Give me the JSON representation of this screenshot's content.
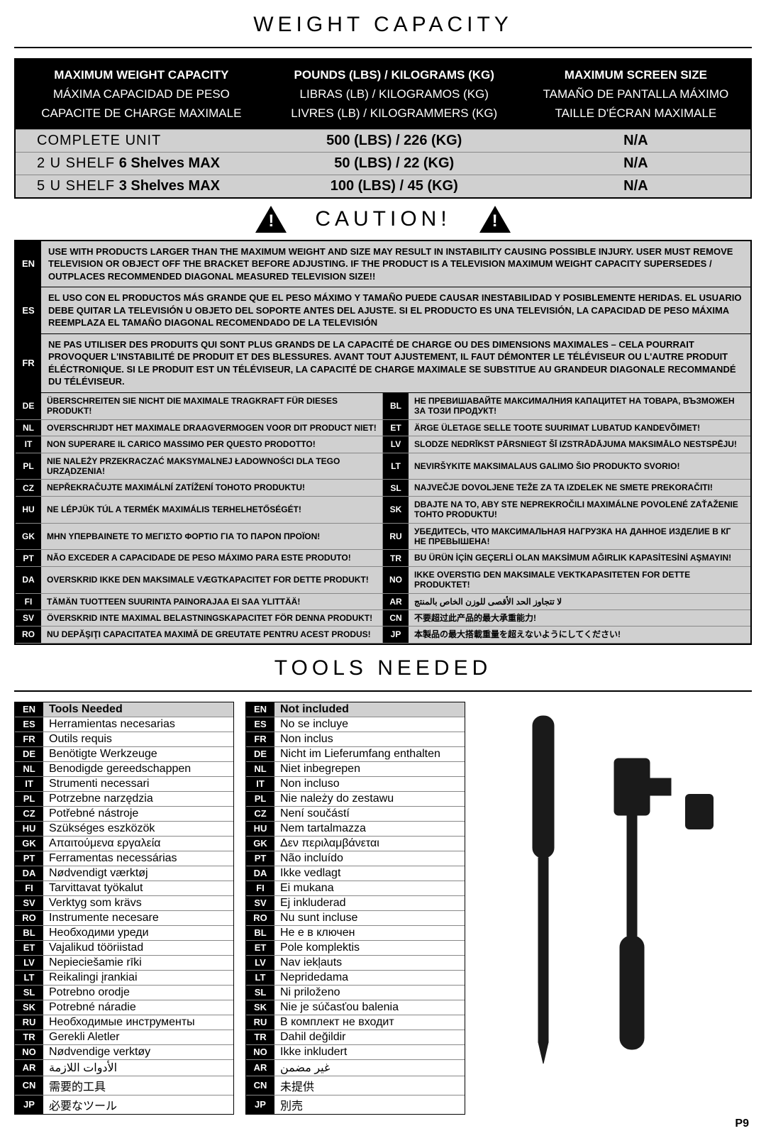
{
  "headings": {
    "weight": "WEIGHT CAPACITY",
    "caution": "CAUTION!",
    "tools": "TOOLS NEEDED"
  },
  "page": "P9",
  "wc_header": {
    "col1": [
      "MAXIMUM WEIGHT CAPACITY",
      "MÁXIMA CAPACIDAD DE PESO",
      "CAPACITE DE CHARGE MAXIMALE"
    ],
    "col2": [
      "POUNDS (LBS) / KILOGRAMS (KG)",
      "LIBRAS (LB) / KILOGRAMOS (KG)",
      "LIVRES (LB) / KILOGRAMMERS (KG)"
    ],
    "col3": [
      "MAXIMUM SCREEN SIZE",
      "TAMAÑO DE PANTALLA MÁXIMO",
      "TAILLE D'ÉCRAN MAXIMALE"
    ]
  },
  "wc_rows": [
    {
      "c1a": "COMPLETE UNIT",
      "c1b": "",
      "c2": "500 (LBS) / 226 (KG)",
      "c3": "N/A"
    },
    {
      "c1a": "2 U SHELF",
      "c1b": " 6 Shelves MAX",
      "c2": "50 (LBS) / 22 (KG)",
      "c3": "N/A"
    },
    {
      "c1a": "5 U SHELF",
      "c1b": " 3 Shelves MAX",
      "c2": "100 (LBS) / 45 (KG)",
      "c3": "N/A"
    }
  ],
  "long_warn": [
    {
      "code": "EN",
      "txt": "USE WITH PRODUCTS LARGER THAN THE MAXIMUM WEIGHT AND SIZE MAY RESULT IN INSTABILITY CAUSING POSSIBLE INJURY.  USER MUST REMOVE TELEVISION OR OBJECT OFF THE BRACKET BEFORE ADJUSTING.  IF THE PRODUCT IS A TELEVISION MAXIMUM WEIGHT CAPACITY SUPERSEDES / OUTPLACES RECOMMENDED DIAGONAL  MEASURED TELEVISION SIZE!!"
    },
    {
      "code": "ES",
      "txt": "EL USO CON EL PRODUCTOS MÁS GRANDE QUE EL PESO MÁXIMO Y TAMAÑO PUEDE CAUSAR INESTABILIDAD Y POSIBLEMENTE HERIDAS. EL USUARIO DEBE QUITAR LA TELEVISIÓN U OBJETO DEL SOPORTE ANTES DEL AJUSTE. SI EL PRODUCTO ES UNA TELEVISIÓN, LA CAPACIDAD DE PESO MÁXIMA REEMPLAZA EL TAMAÑO DIAGONAL RECOMENDADO DE LA TELEVISIÓN"
    },
    {
      "code": "FR",
      "txt": "NE PAS UTILISER DES PRODUITS QUI SONT PLUS GRANDS DE LA CAPACITÉ DE CHARGE OU DES DIMENSIONS MAXIMALES – CELA POURRAIT PROVOQUER L'INSTABILITÉ DE PRODUIT ET DES BLESSURES. AVANT TOUT AJUSTEMENT, IL FAUT DÉMONTER LE TÉLÉVISEUR OU L'AUTRE PRODUIT ÉLÉCTRONIQUE. SI LE PRODUIT EST UN TÉLÉVISEUR, LA CAPACITÉ DE CHARGE MAXIMALE SE SUBSTITUE AU GRANDEUR DIAGONALE RECOMMANDÉ DU TÉLÉVISEUR."
    }
  ],
  "short_warn": [
    {
      "code": "DE",
      "txt": "ÜBERSCHREITEN SIE NICHT DIE MAXIMALE TRAGKRAFT FÜR DIESES PRODUKT!"
    },
    {
      "code": "BL",
      "txt": "НЕ ПРЕВИШАВАЙТЕ МАКСИМАЛНИЯ КАПАЦИТЕТ НА ТОВАРА, ВЪЗМОЖЕН ЗА ТОЗИ ПРОДУКТ!"
    },
    {
      "code": "NL",
      "txt": "OVERSCHRIJDT HET MAXIMALE DRAAGVERMOGEN VOOR DIT PRODUCT NIET!"
    },
    {
      "code": "ET",
      "txt": "ÄRGE ÜLETAGE SELLE TOOTE SUURIMAT LUBATUD KANDEVÕIMET!"
    },
    {
      "code": "IT",
      "txt": "NON SUPERARE IL CARICO MASSIMO PER QUESTO PRODOTTO!"
    },
    {
      "code": "LV",
      "txt": "SLODZE NEDRĪKST PĀRSNIEGT ŠĪ IZSTRĀDĀJUMA MAKSIMĀLO NESTSPĒJU!"
    },
    {
      "code": "PL",
      "txt": "NIE NALEŻY PRZEKRACZAĆ MAKSYMALNEJ ŁADOWNOŚCI DLA TEGO URZĄDZENIA!"
    },
    {
      "code": "LT",
      "txt": "NEVIRŠYKITE MAKSIMALAUS GALIMO ŠIO PRODUKTO SVORIO!"
    },
    {
      "code": "CZ",
      "txt": "NEPŘEKRAČUJTE MAXIMÁLNÍ ZATÍŽENÍ TOHOTO PRODUKTU!"
    },
    {
      "code": "SL",
      "txt": "NAJVEČJE DOVOLJENE TEŽE ZA TA IZDELEK NE SMETE PREKORAČITI!"
    },
    {
      "code": "HU",
      "txt": "NE LÉPJÜK TÚL A TERMÉK MAXIMÁLIS TERHELHETŐSÉGÉT!"
    },
    {
      "code": "SK",
      "txt": "DBAJTE NA TO, ABY STE NEPREKROČILI MAXIMÁLNE POVOLENÉ ZAŤAŽENIE TOHTO PRODUKTU!"
    },
    {
      "code": "GK",
      "txt": "ΜΗΝ ΥΠΕΡΒΑΙΝΕΤΕ ΤΟ ΜΕΓΙΣΤΟ ΦΟΡΤΙΟ ΓΙΑ ΤΟ ΠΑΡΟΝ ΠΡΟΪΟΝ!"
    },
    {
      "code": "RU",
      "txt": "УБЕДИТЕСЬ, ЧТО МАКСИМАЛЬНАЯ НАГРУЗКА НА ДАННОЕ ИЗДЕЛИЕ В КГ НЕ ПРЕВЫШЕНА!"
    },
    {
      "code": "PT",
      "txt": "NÃO EXCEDER A CAPACIDADE DE PESO MÁXIMO PARA ESTE PRODUTO!"
    },
    {
      "code": "TR",
      "txt": "BU ÜRÜN İÇİN GEÇERLİ OLAN MAKSİMUM AĞIRLIK KAPASİTESİNİ AŞMAYIN!"
    },
    {
      "code": "DA",
      "txt": "OVERSKRID IKKE DEN MAKSIMALE VÆGTKAPACITET FOR DETTE PRODUKT!"
    },
    {
      "code": "NO",
      "txt": "IKKE OVERSTIG DEN MAKSIMALE VEKTKAPASITETEN FOR DETTE PRODUKTET!"
    },
    {
      "code": "FI",
      "txt": "TÄMÄN TUOTTEEN SUURINTA PAINORAJAA EI SAA YLITTÄÄ!"
    },
    {
      "code": "AR",
      "txt": "لا تتجاوز الحد الأقصى للوزن الخاص بالمنتج"
    },
    {
      "code": "SV",
      "txt": "ÖVERSKRID INTE MAXIMAL BELASTNINGSKAPACITET FÖR DENNA PRODUKT!"
    },
    {
      "code": "CN",
      "txt": "不要超过此产品的最大承重能力!"
    },
    {
      "code": "RO",
      "txt": "NU DEPĂŞIŢI CAPACITATEA MAXIMĂ DE GREUTATE PENTRU ACEST PRODUS!"
    },
    {
      "code": "JP",
      "txt": "本製品の最大搭載重量を超えないようにしてください!"
    }
  ],
  "tools_needed": [
    {
      "code": "EN",
      "txt": "Tools Needed",
      "hdr": true
    },
    {
      "code": "ES",
      "txt": "Herramientas necesarias"
    },
    {
      "code": "FR",
      "txt": "Outils requis"
    },
    {
      "code": "DE",
      "txt": "Benötigte Werkzeuge"
    },
    {
      "code": "NL",
      "txt": "Benodigde gereedschappen"
    },
    {
      "code": "IT",
      "txt": "Strumenti necessari"
    },
    {
      "code": "PL",
      "txt": "Potrzebne narzędzia"
    },
    {
      "code": "CZ",
      "txt": "Potřebné nástroje"
    },
    {
      "code": "HU",
      "txt": "Szükséges eszközök"
    },
    {
      "code": "GK",
      "txt": "Απαιτούμενα εργαλεία"
    },
    {
      "code": "PT",
      "txt": "Ferramentas necessárias"
    },
    {
      "code": "DA",
      "txt": "Nødvendigt værktøj"
    },
    {
      "code": "FI",
      "txt": "Tarvittavat työkalut"
    },
    {
      "code": "SV",
      "txt": "Verktyg som krävs"
    },
    {
      "code": "RO",
      "txt": "Instrumente necesare"
    },
    {
      "code": "BL",
      "txt": "Необходими уреди"
    },
    {
      "code": "ET",
      "txt": "Vajalikud tööriistad"
    },
    {
      "code": "LV",
      "txt": "Nepieciešamie rīki"
    },
    {
      "code": "LT",
      "txt": "Reikalingi įrankiai"
    },
    {
      "code": "SL",
      "txt": "Potrebno orodje"
    },
    {
      "code": "SK",
      "txt": "Potrebné náradie"
    },
    {
      "code": "RU",
      "txt": "Необходимые инструменты"
    },
    {
      "code": "TR",
      "txt": "Gerekli Aletler"
    },
    {
      "code": "NO",
      "txt": "Nødvendige verktøy"
    },
    {
      "code": "AR",
      "txt": "الأدوات اللازمة"
    },
    {
      "code": "CN",
      "txt": "需要的工具"
    },
    {
      "code": "JP",
      "txt": "必要なツール"
    }
  ],
  "not_included": [
    {
      "code": "EN",
      "txt": "Not included",
      "hdr": true
    },
    {
      "code": "ES",
      "txt": "No se incluye"
    },
    {
      "code": "FR",
      "txt": "Non inclus"
    },
    {
      "code": "DE",
      "txt": "Nicht im Lieferumfang enthalten"
    },
    {
      "code": "NL",
      "txt": "Niet inbegrepen"
    },
    {
      "code": "IT",
      "txt": "Non incluso"
    },
    {
      "code": "PL",
      "txt": "Nie należy do zestawu"
    },
    {
      "code": "CZ",
      "txt": "Není součástí"
    },
    {
      "code": "HU",
      "txt": "Nem tartalmazza"
    },
    {
      "code": "GK",
      "txt": "Δεν περιλαμβάνεται"
    },
    {
      "code": "PT",
      "txt": "Não incluído"
    },
    {
      "code": "DA",
      "txt": "Ikke vedlagt"
    },
    {
      "code": "FI",
      "txt": "Ei mukana"
    },
    {
      "code": "SV",
      "txt": "Ej inkluderad"
    },
    {
      "code": "RO",
      "txt": "Nu sunt incluse"
    },
    {
      "code": "BL",
      "txt": "Не е в ключен"
    },
    {
      "code": "ET",
      "txt": "Pole komplektis"
    },
    {
      "code": "LV",
      "txt": "Nav iekļauts"
    },
    {
      "code": "LT",
      "txt": "Nepridedama"
    },
    {
      "code": "SL",
      "txt": "Ni priloženo"
    },
    {
      "code": "SK",
      "txt": "Nie je súčasťou balenia"
    },
    {
      "code": "RU",
      "txt": "В комплект не входит"
    },
    {
      "code": "TR",
      "txt": "Dahil değildir"
    },
    {
      "code": "NO",
      "txt": "Ikke inkludert"
    },
    {
      "code": "AR",
      "txt": "غير مضمن"
    },
    {
      "code": "CN",
      "txt": "未提供"
    },
    {
      "code": "JP",
      "txt": "別売"
    }
  ]
}
